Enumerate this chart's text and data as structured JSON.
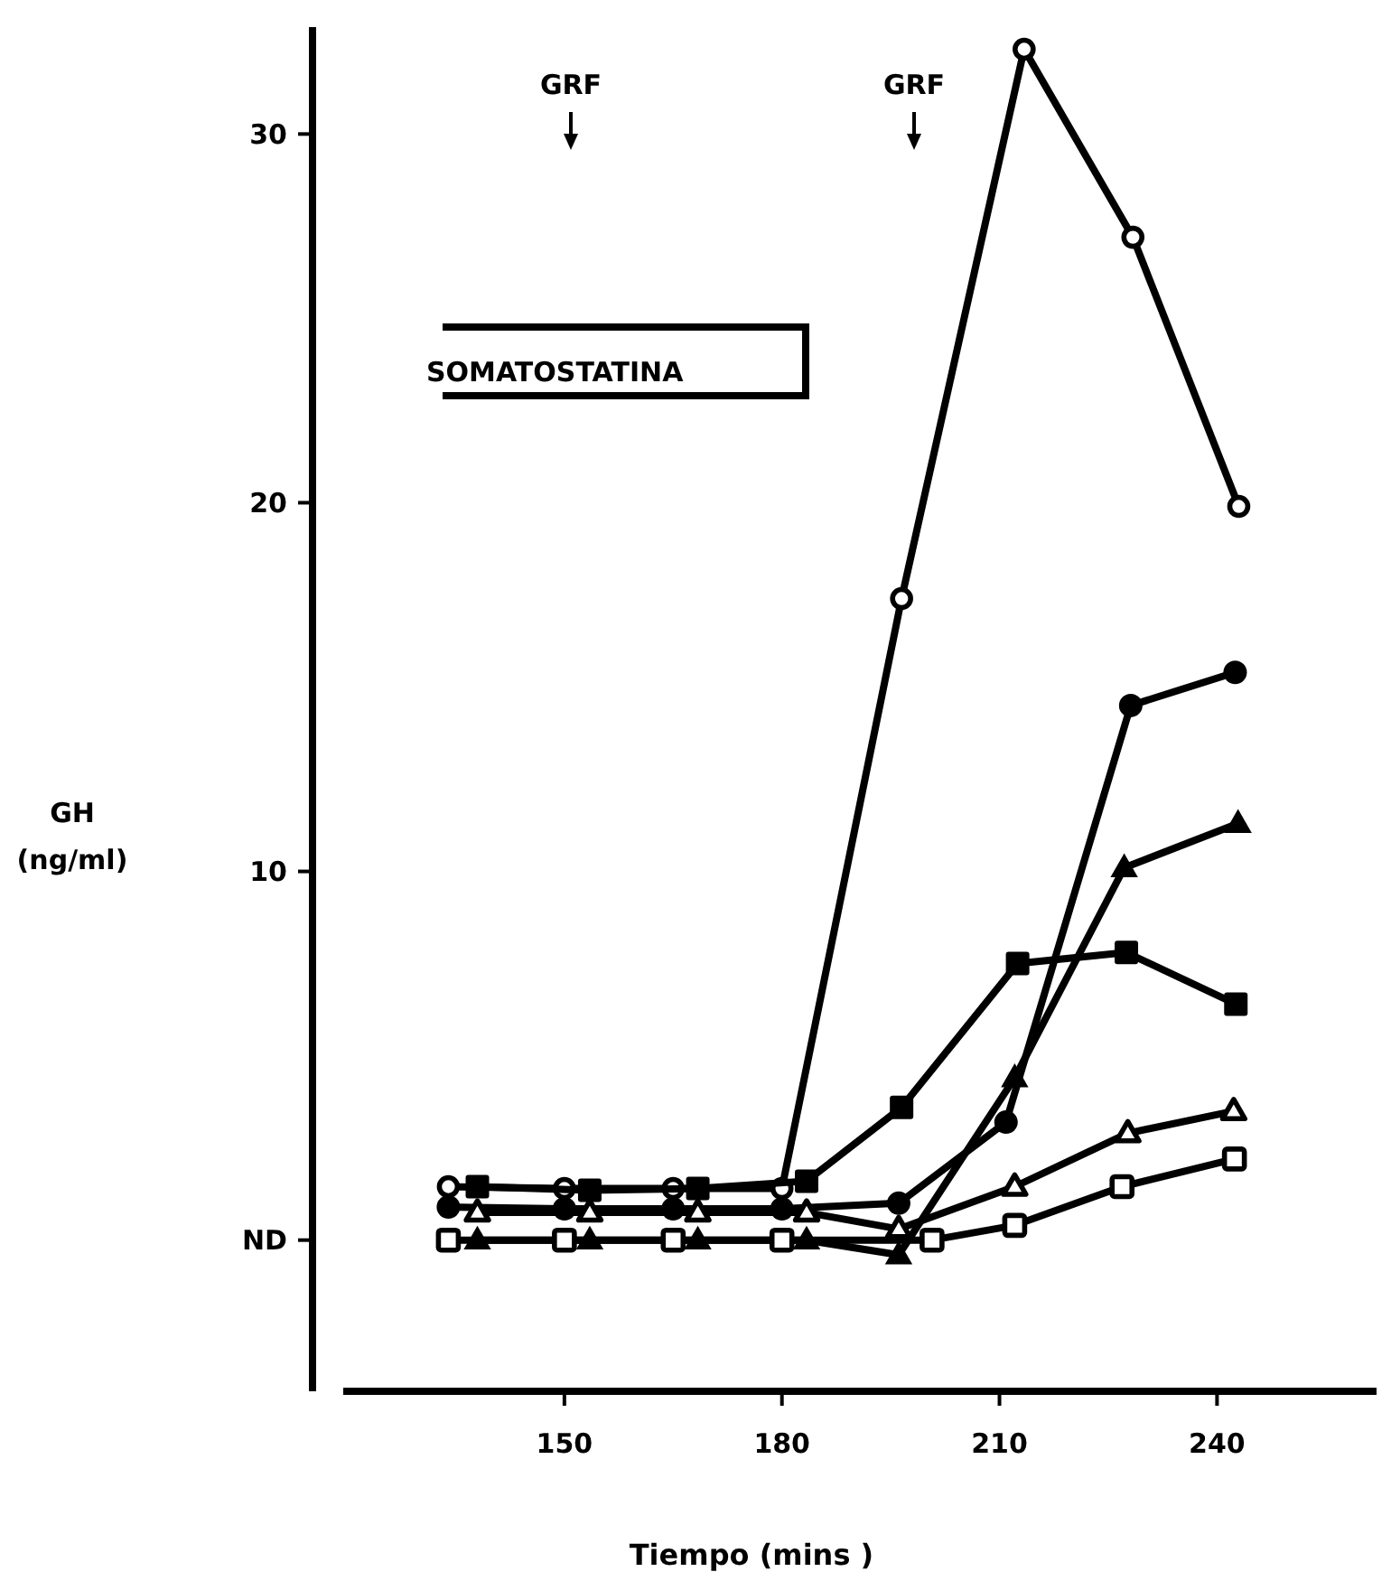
{
  "chart_data": {
    "type": "line",
    "xlabel": "Tiempo (mins )",
    "ylabel": "GH (ng/ml)",
    "xlim": [
      119.5,
      262
    ],
    "xticks": [
      150,
      180,
      210,
      240
    ],
    "ylim": [
      -4.1,
      32.9
    ],
    "yticks": [
      {
        "value": 0,
        "label": "ND"
      },
      10,
      20,
      30
    ],
    "grid": false,
    "line_style": "solid",
    "annotations": [
      "GRF",
      "GRF",
      "SOMATOSTATINA"
    ],
    "series": [
      {
        "color": "#000000",
        "marker": "circle-open",
        "x": [
          134,
          150,
          165,
          180,
          196.5,
          213.4,
          228.4,
          243
        ],
        "values": [
          1.45,
          1.4,
          1.4,
          1.4,
          17.4,
          32.3,
          27.2,
          19.9
        ]
      },
      {
        "color": "#000000",
        "marker": "circle",
        "x": [
          134,
          150,
          165,
          180,
          196.1,
          210.9,
          228.1,
          242.5
        ],
        "values": [
          0.9,
          0.85,
          0.85,
          0.85,
          1.0,
          3.2,
          14.5,
          15.4
        ]
      },
      {
        "color": "#000000",
        "marker": "triangle-open",
        "x": [
          138,
          153.5,
          168.4,
          183.4,
          196.1,
          212.1,
          227.7,
          242.3
        ],
        "values": [
          0.75,
          0.75,
          0.75,
          0.75,
          0.3,
          1.45,
          2.9,
          3.5
        ]
      },
      {
        "color": "#000000",
        "marker": "triangle",
        "x": [
          138,
          153.5,
          168.4,
          183.4,
          196.1,
          212.1,
          227.2,
          242.9
        ],
        "values": [
          0,
          0,
          0,
          0,
          -0.4,
          4.4,
          10.1,
          11.3
        ]
      },
      {
        "color": "#000000",
        "marker": "square-open",
        "x": [
          134,
          150,
          165,
          180,
          200.7,
          212.1,
          226.9,
          242.4
        ],
        "values": [
          0,
          0,
          0,
          0,
          0,
          0.4,
          1.45,
          2.2
        ]
      },
      {
        "color": "#000000",
        "marker": "square",
        "x": [
          138,
          153.5,
          168.4,
          183.4,
          196.5,
          212.5,
          227.5,
          242.6
        ],
        "values": [
          1.45,
          1.35,
          1.4,
          1.6,
          3.6,
          7.5,
          7.8,
          6.4
        ]
      }
    ]
  }
}
